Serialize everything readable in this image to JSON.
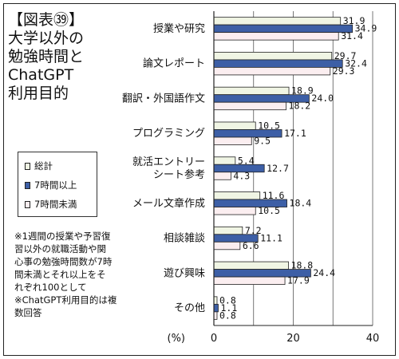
{
  "figure": {
    "title": "【図表㊴】\n大学以外の\n勉強時間と\nChatGPT\n利用目的",
    "note": "※1週間の授業や予習復\n習以外の就職活動や関\n心事の勉強時間数が7時\n間未満とそれ以上をそ\nれぞれ100として\n※ChatGPT利用目的は複\n数回答"
  },
  "legend": {
    "items": [
      {
        "label": "総計",
        "color": "#f0f5e4"
      },
      {
        "label": "7時間以上",
        "color": "#3d5fa6"
      },
      {
        "label": "7時間未満",
        "color": "#fbeef0"
      }
    ]
  },
  "chart_data": {
    "type": "bar",
    "orientation": "horizontal",
    "categories": [
      "授業や研究",
      "論文レポート",
      "翻訳・外国語作文",
      "プログラミング",
      "就活エントリー\nシート参考",
      "メール文章作成",
      "相談雑談",
      "遊び興味",
      "その他"
    ],
    "series": [
      {
        "name": "総計",
        "values": [
          31.9,
          29.7,
          18.9,
          10.5,
          5.4,
          11.6,
          7.2,
          18.8,
          0.8
        ],
        "color": "#f0f5e4"
      },
      {
        "name": "7時間以上",
        "values": [
          34.9,
          32.4,
          24.0,
          17.1,
          12.7,
          18.4,
          11.1,
          24.4,
          1.1
        ],
        "color": "#3d5fa6"
      },
      {
        "name": "7時間未満",
        "values": [
          31.4,
          29.3,
          18.2,
          9.5,
          4.3,
          10.5,
          6.6,
          17.9,
          0.8
        ],
        "color": "#fbeef0"
      }
    ],
    "value_labels": [
      [
        "31.9",
        "34.9",
        "31.4"
      ],
      [
        "29.7",
        "32.4",
        "29.3"
      ],
      [
        "18.9",
        "24.0",
        "18.2"
      ],
      [
        "10.5",
        "17.1",
        "9.5"
      ],
      [
        "5.4",
        "12.7",
        "4.3"
      ],
      [
        "11.6",
        "18.4",
        "10.5"
      ],
      [
        "7.2",
        "11.1",
        "6.6"
      ],
      [
        "18.8",
        "24.4",
        "17.9"
      ],
      [
        "0.8",
        "1.1",
        "0.8"
      ]
    ],
    "xlim": [
      0,
      40
    ],
    "xticks": [
      "0",
      "20",
      "40"
    ],
    "unit_label": "(%)",
    "grid": true
  }
}
